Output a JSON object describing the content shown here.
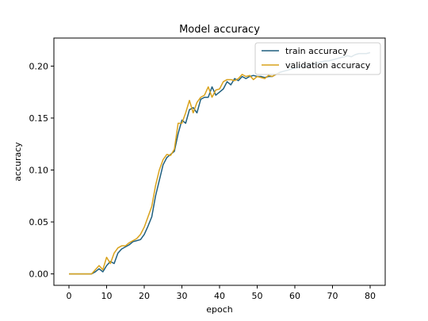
{
  "chart_data": {
    "type": "line",
    "title": "Model accuracy",
    "xlabel": "epoch",
    "ylabel": "accuracy",
    "xlim": [
      -4,
      84
    ],
    "ylim": [
      -0.011,
      0.227
    ],
    "x_ticks": [
      0,
      10,
      20,
      30,
      40,
      50,
      60,
      70,
      80
    ],
    "y_ticks": [
      0.0,
      0.05,
      0.1,
      0.15,
      0.2
    ],
    "y_tick_labels": [
      "0.00",
      "0.05",
      "0.10",
      "0.15",
      "0.20"
    ],
    "legend_position": "top-right",
    "grid": false,
    "series": [
      {
        "name": "train accuracy",
        "color": "#1f5f7f",
        "x": [
          0,
          1,
          2,
          3,
          4,
          5,
          6,
          7,
          8,
          9,
          10,
          11,
          12,
          13,
          14,
          15,
          16,
          17,
          18,
          19,
          20,
          21,
          22,
          23,
          24,
          25,
          26,
          27,
          28,
          29,
          30,
          31,
          32,
          33,
          34,
          35,
          36,
          37,
          38,
          39,
          40,
          41,
          42,
          43,
          44,
          45,
          46,
          47,
          48,
          49,
          50,
          51,
          52,
          53,
          54,
          55,
          56,
          57,
          58,
          59,
          60,
          61,
          62,
          63,
          64,
          65,
          66,
          67,
          68,
          69,
          70,
          71,
          72,
          73,
          74,
          75,
          76,
          77,
          78,
          79,
          80
        ],
        "y": [
          0.0,
          0.0,
          0.0,
          0.0,
          0.0,
          0.0,
          0.0,
          0.002,
          0.005,
          0.002,
          0.008,
          0.012,
          0.01,
          0.02,
          0.024,
          0.026,
          0.028,
          0.031,
          0.032,
          0.033,
          0.038,
          0.046,
          0.055,
          0.075,
          0.09,
          0.105,
          0.112,
          0.115,
          0.118,
          0.135,
          0.148,
          0.145,
          0.158,
          0.16,
          0.155,
          0.168,
          0.17,
          0.17,
          0.18,
          0.172,
          0.175,
          0.178,
          0.185,
          0.182,
          0.188,
          0.186,
          0.19,
          0.188,
          0.19,
          0.191,
          0.19,
          0.19,
          0.189,
          0.19,
          0.19,
          0.192,
          0.194,
          0.195,
          0.196,
          0.197,
          0.198,
          0.199,
          0.2,
          0.2,
          0.201,
          0.202,
          0.203,
          0.204,
          0.205,
          0.205,
          0.206,
          0.207,
          0.208,
          0.209,
          0.21,
          0.209,
          0.211,
          0.212,
          0.212,
          0.212,
          0.213
        ]
      },
      {
        "name": "validation accuracy",
        "color": "#d9a21b",
        "x": [
          0,
          1,
          2,
          3,
          4,
          5,
          6,
          7,
          8,
          9,
          10,
          11,
          12,
          13,
          14,
          15,
          16,
          17,
          18,
          19,
          20,
          21,
          22,
          23,
          24,
          25,
          26,
          27,
          28,
          29,
          30,
          31,
          32,
          33,
          34,
          35,
          36,
          37,
          38,
          39,
          40,
          41,
          42,
          43,
          44,
          45,
          46,
          47,
          48,
          49,
          50,
          51,
          52,
          53,
          54,
          55,
          56
        ],
        "y": [
          0.0,
          0.0,
          0.0,
          0.0,
          0.0,
          0.0,
          0.0,
          0.004,
          0.008,
          0.004,
          0.016,
          0.01,
          0.02,
          0.025,
          0.027,
          0.027,
          0.03,
          0.032,
          0.034,
          0.038,
          0.045,
          0.055,
          0.065,
          0.085,
          0.1,
          0.11,
          0.115,
          0.114,
          0.12,
          0.145,
          0.145,
          0.155,
          0.167,
          0.155,
          0.165,
          0.17,
          0.172,
          0.18,
          0.17,
          0.177,
          0.178,
          0.185,
          0.187,
          0.187,
          0.186,
          0.188,
          0.192,
          0.19,
          0.191,
          0.187,
          0.19,
          0.189,
          0.188,
          0.191,
          0.19,
          0.192,
          0.193
        ]
      }
    ]
  }
}
